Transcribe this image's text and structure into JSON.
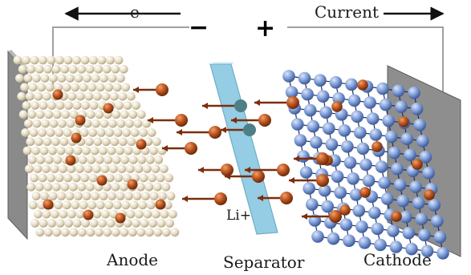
{
  "top": {
    "electron_label": "e-",
    "current_label": "Current",
    "minus_sign": "−",
    "plus_sign": "+"
  },
  "labels": {
    "anode": "Anode",
    "separator": "Separator",
    "cathode": "Cathode",
    "ion": "Li+"
  },
  "colors": {
    "anode_particle": "#e9e1cd",
    "cathode_particle": "#7f9ed8",
    "lithium_ion": "#b9521d",
    "separator": "#8fcbe3",
    "current_collector": "#8a8a8a",
    "wire": "#9a9a9a"
  }
}
